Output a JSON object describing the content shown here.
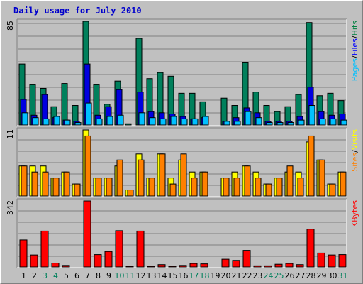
{
  "page": {
    "title": "Daily usage for July 2010"
  },
  "chart_data": [
    {
      "type": "bar",
      "panel": "hits-files-pages",
      "max_label": "85",
      "ylim": [
        0,
        85
      ],
      "right_label": [
        {
          "text": "Pages",
          "color": "#00c0ff"
        },
        {
          "text": "/",
          "color": "#000000"
        },
        {
          "text": "Files",
          "color": "#0000ff"
        },
        {
          "text": "/",
          "color": "#000000"
        },
        {
          "text": "Hits",
          "color": "#008040"
        }
      ],
      "categories": [
        "1",
        "2",
        "3",
        "4",
        "5",
        "6",
        "7",
        "8",
        "9",
        "10",
        "11",
        "12",
        "13",
        "14",
        "15",
        "16",
        "17",
        "18",
        "19",
        "20",
        "21",
        "22",
        "23",
        "24",
        "25",
        "26",
        "27",
        "28",
        "29",
        "30",
        "31"
      ],
      "series": [
        {
          "name": "Hits",
          "color": "#00805c",
          "values": [
            50,
            33,
            30,
            15,
            34,
            16,
            85,
            33,
            17,
            36,
            1,
            71,
            38,
            43,
            40,
            26,
            26,
            19,
            0,
            22,
            16,
            51,
            27,
            16,
            11,
            15,
            25,
            84,
            24,
            26,
            20
          ]
        },
        {
          "name": "Files",
          "color": "#0000e0",
          "values": [
            21,
            8,
            25,
            6,
            4,
            3,
            50,
            8,
            15,
            29,
            0,
            27,
            11,
            10,
            9,
            7,
            5,
            6,
            0,
            3,
            6,
            14,
            10,
            3,
            3,
            3,
            7,
            31,
            11,
            8,
            9
          ]
        },
        {
          "name": "Pages",
          "color": "#00c0ff",
          "values": [
            10,
            6,
            5,
            7,
            4,
            2,
            18,
            5,
            7,
            8,
            0,
            10,
            6,
            5,
            7,
            5,
            5,
            7,
            0,
            3,
            3,
            11,
            6,
            2,
            2,
            2,
            4,
            16,
            5,
            5,
            4
          ]
        }
      ]
    },
    {
      "type": "bar",
      "panel": "visits-sites",
      "max_label": "11",
      "ylim": [
        0,
        11
      ],
      "right_label": [
        {
          "text": "Sites",
          "color": "#ff8000"
        },
        {
          "text": "/",
          "color": "#000000"
        },
        {
          "text": "Visits",
          "color": "#ffff00"
        }
      ],
      "categories": [
        "1",
        "2",
        "3",
        "4",
        "5",
        "6",
        "7",
        "8",
        "9",
        "10",
        "11",
        "12",
        "13",
        "14",
        "15",
        "16",
        "17",
        "18",
        "19",
        "20",
        "21",
        "22",
        "23",
        "24",
        "25",
        "26",
        "27",
        "28",
        "29",
        "30",
        "31"
      ],
      "series": [
        {
          "name": "Visits",
          "color": "#ffff00",
          "values": [
            5,
            5,
            5,
            3,
            4,
            2,
            11,
            3,
            3,
            5,
            1,
            7,
            3,
            7,
            3,
            6,
            4,
            4,
            0,
            3,
            4,
            5,
            4,
            2,
            3,
            4,
            4,
            9,
            6,
            2,
            4
          ]
        },
        {
          "name": "Sites",
          "color": "#ff8000",
          "values": [
            5,
            4,
            4,
            3,
            4,
            2,
            10,
            3,
            3,
            6,
            1,
            6,
            3,
            7,
            2,
            7,
            3,
            4,
            0,
            3,
            3,
            5,
            3,
            2,
            3,
            5,
            3,
            10,
            6,
            2,
            4
          ]
        }
      ]
    },
    {
      "type": "bar",
      "panel": "kbytes",
      "max_label": "342",
      "ylim": [
        0,
        342
      ],
      "right_label": [
        {
          "text": "KBytes",
          "color": "#ff0000"
        }
      ],
      "categories": [
        "1",
        "2",
        "3",
        "4",
        "5",
        "6",
        "7",
        "8",
        "9",
        "10",
        "11",
        "12",
        "13",
        "14",
        "15",
        "16",
        "17",
        "18",
        "19",
        "20",
        "21",
        "22",
        "23",
        "24",
        "25",
        "26",
        "27",
        "28",
        "29",
        "30",
        "31"
      ],
      "series": [
        {
          "name": "KBytes",
          "color": "#ff0000",
          "values": [
            140,
            62,
            186,
            20,
            8,
            0,
            342,
            64,
            80,
            188,
            4,
            186,
            4,
            12,
            4,
            8,
            18,
            16,
            0,
            40,
            34,
            86,
            6,
            6,
            14,
            18,
            12,
            196,
            72,
            62,
            64
          ]
        }
      ]
    }
  ],
  "x_axis": {
    "labels": [
      {
        "text": "1",
        "color": "#000000"
      },
      {
        "text": "2",
        "color": "#000000"
      },
      {
        "text": "3",
        "color": "#00805c"
      },
      {
        "text": "4",
        "color": "#00805c"
      },
      {
        "text": "5",
        "color": "#000000"
      },
      {
        "text": "6",
        "color": "#000000"
      },
      {
        "text": "7",
        "color": "#000000"
      },
      {
        "text": "8",
        "color": "#000000"
      },
      {
        "text": "9",
        "color": "#000000"
      },
      {
        "text": "10",
        "color": "#00805c"
      },
      {
        "text": "11",
        "color": "#00805c"
      },
      {
        "text": "12",
        "color": "#000000"
      },
      {
        "text": "13",
        "color": "#000000"
      },
      {
        "text": "14",
        "color": "#000000"
      },
      {
        "text": "15",
        "color": "#000000"
      },
      {
        "text": "16",
        "color": "#000000"
      },
      {
        "text": "17",
        "color": "#00805c"
      },
      {
        "text": "18",
        "color": "#00805c"
      },
      {
        "text": "19",
        "color": "#000000"
      },
      {
        "text": "20",
        "color": "#000000"
      },
      {
        "text": "21",
        "color": "#000000"
      },
      {
        "text": "22",
        "color": "#000000"
      },
      {
        "text": "23",
        "color": "#000000"
      },
      {
        "text": "24",
        "color": "#00805c"
      },
      {
        "text": "25",
        "color": "#00805c"
      },
      {
        "text": "26",
        "color": "#000000"
      },
      {
        "text": "27",
        "color": "#000000"
      },
      {
        "text": "28",
        "color": "#000000"
      },
      {
        "text": "29",
        "color": "#000000"
      },
      {
        "text": "30",
        "color": "#000000"
      },
      {
        "text": "31",
        "color": "#00805c"
      }
    ]
  },
  "colors": {
    "background": "#c0c0c0",
    "gridline": "#808080",
    "title": "#0000cc"
  }
}
